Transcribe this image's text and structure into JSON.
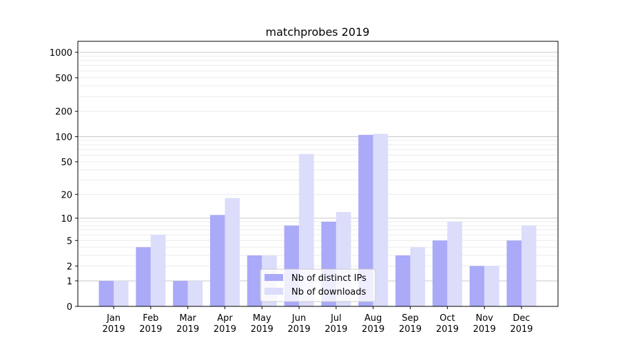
{
  "chart_data": {
    "type": "bar",
    "title": "matchprobes 2019",
    "xlabel": "",
    "ylabel": "",
    "yscale": "symlog",
    "ylim": [
      0,
      1300
    ],
    "categories": [
      "Jan\n2019",
      "Feb\n2019",
      "Mar\n2019",
      "Apr\n2019",
      "May\n2019",
      "Jun\n2019",
      "Jul\n2019",
      "Aug\n2019",
      "Sep\n2019",
      "Oct\n2019",
      "Nov\n2019",
      "Dec\n2019"
    ],
    "yticks": [
      0,
      1,
      2,
      5,
      10,
      20,
      50,
      100,
      200,
      500,
      1000
    ],
    "series": [
      {
        "name": "Nb of distinct IPs",
        "color": "#aaaaf9",
        "values": [
          1,
          4,
          1,
          11,
          3,
          8,
          9,
          105,
          3,
          5,
          2,
          5
        ]
      },
      {
        "name": "Nb of downloads",
        "color": "#dcdcfb",
        "values": [
          1,
          6,
          1,
          18,
          3,
          62,
          12,
          108,
          4,
          9,
          2,
          8
        ]
      }
    ],
    "legend": "lower-center",
    "grid": true
  }
}
